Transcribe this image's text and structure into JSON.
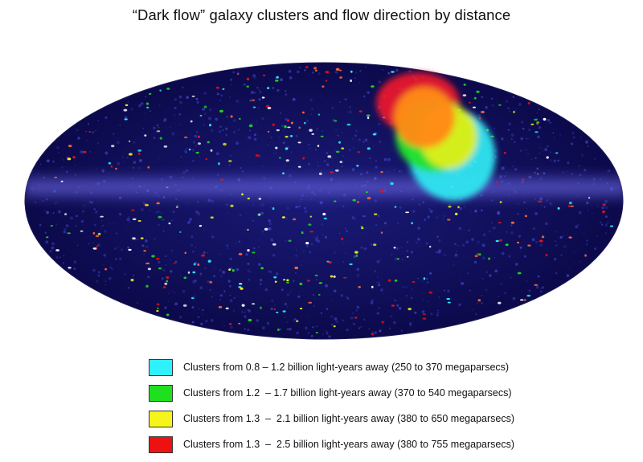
{
  "title": "“Dark flow” galaxy clusters and flow direction by distance",
  "legend": [
    {
      "label": "Clusters from 0.8 – 1.2 billion light-years away (250 to 370 megaparsecs)",
      "color": "#2ff0ff"
    },
    {
      "label": "Clusters from 1.2  – 1.7 billion light-years away (370 to 540 megaparsecs)",
      "color": "#1fe01f"
    },
    {
      "label": "Clusters from 1.3  –  2.1 billion light-years away (380 to 650 megaparsecs)",
      "color": "#f5f51c"
    },
    {
      "label": "Clusters from 1.3  –  2.5 billion light-years away (380 to 755 megaparsecs)",
      "color": "#ee1111"
    }
  ],
  "flow_region_colors": {
    "cyan": "#2ee6f0",
    "green": "#22e02a",
    "yellow": "#e8f01a",
    "red": "#ee1a2a",
    "orange": "#ff8a14"
  },
  "sky_colors": {
    "background": "#0c0a52",
    "band": "#5a58d8",
    "web": "#3a44c8"
  }
}
